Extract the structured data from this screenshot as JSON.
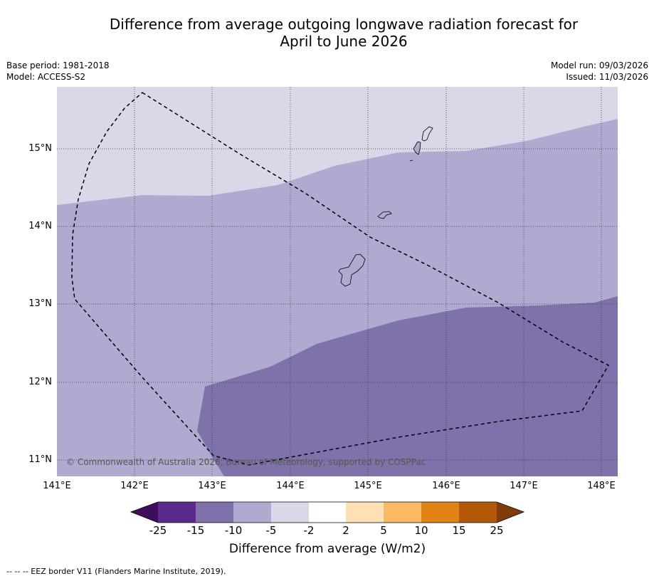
{
  "title_line1": "Difference from average outgoing longwave radiation forecast for",
  "title_line2": "April to June 2026",
  "base_period": "Base period: 1981-2018",
  "model": "Model: ACCESS-S2",
  "model_run": "Model run: 09/03/2026",
  "issued": "Issued: 11/03/2026",
  "copyright": "© Commonwealth of Australia 2026, Bureau of Meteorology, supported by COSPPac",
  "lat_labels": [
    "15°N",
    "14°N",
    "13°N",
    "12°N",
    "11°N"
  ],
  "lon_labels": [
    "141°E",
    "142°E",
    "143°E",
    "144°E",
    "145°E",
    "146°E",
    "147°E",
    "148°E"
  ],
  "colorbar": {
    "title": "Difference from average (W/m2)",
    "labels": [
      "-25",
      "-15",
      "-10",
      "-5",
      "-2",
      "2",
      "5",
      "10",
      "15",
      "25"
    ],
    "colors": [
      "#3f0d5e",
      "#5b2a8c",
      "#7f72ab",
      "#b0a9d0",
      "#d8d8e9",
      "#ffffff",
      "#fee0b5",
      "#fdb863",
      "#e08214",
      "#b35806",
      "#7f3b08"
    ]
  },
  "footer": "--  --  -- EEZ border V11 (Flanders Marine Institute, 2019)."
}
